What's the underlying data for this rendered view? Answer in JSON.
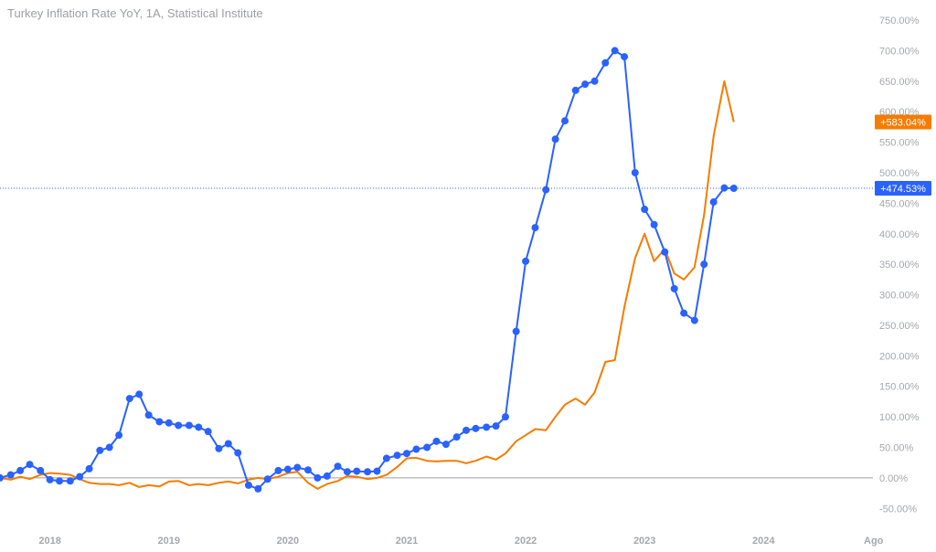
{
  "chart_data": {
    "type": "line",
    "title": "Turkey Inflation Rate YoY, 1A, Statistical Institute",
    "ylim": [
      -75,
      765
    ],
    "y_ticks": [
      -50,
      0,
      50,
      100,
      150,
      200,
      250,
      300,
      350,
      400,
      450,
      500,
      550,
      600,
      650,
      700,
      750
    ],
    "y_tick_labels": [
      "-50.00%",
      "0.00%",
      "50.00%",
      "100.00%",
      "150.00%",
      "200.00%",
      "250.00%",
      "300.00%",
      "350.00%",
      "400.00%",
      "450.00%",
      "500.00%",
      "550.00%",
      "600.00%",
      "650.00%",
      "700.00%",
      "750.00%"
    ],
    "x_ticks": [
      2018,
      2019,
      2020,
      2021,
      2022,
      2023,
      2024
    ],
    "x_tick_labels": [
      "2018",
      "2019",
      "2020",
      "2021",
      "2022",
      "2023",
      "2024"
    ],
    "x_extra_label": "Ago",
    "xlim": [
      2017.58,
      2024.92
    ],
    "zero_line": 0,
    "grid": false,
    "series": [
      {
        "color": "#2962ff",
        "markers": true,
        "last_value_label": "+474.53%",
        "last_value": 474.53,
        "x": [
          2017.58,
          2017.67,
          2017.75,
          2017.83,
          2017.92,
          2018.0,
          2018.08,
          2018.17,
          2018.25,
          2018.33,
          2018.42,
          2018.5,
          2018.58,
          2018.67,
          2018.75,
          2018.83,
          2018.92,
          2019.0,
          2019.08,
          2019.17,
          2019.25,
          2019.33,
          2019.42,
          2019.5,
          2019.58,
          2019.67,
          2019.75,
          2019.83,
          2019.92,
          2020.0,
          2020.08,
          2020.17,
          2020.25,
          2020.33,
          2020.42,
          2020.5,
          2020.58,
          2020.67,
          2020.75,
          2020.83,
          2020.92,
          2021.0,
          2021.08,
          2021.17,
          2021.25,
          2021.33,
          2021.42,
          2021.5,
          2021.58,
          2021.67,
          2021.75,
          2021.83,
          2021.92,
          2022.0,
          2022.08,
          2022.17,
          2022.25,
          2022.33,
          2022.42,
          2022.5,
          2022.58,
          2022.67,
          2022.75,
          2022.83,
          2022.92,
          2023.0,
          2023.08,
          2023.17,
          2023.25,
          2023.33,
          2023.42,
          2023.5,
          2023.58,
          2023.67,
          2023.75
        ],
        "values": [
          0,
          5,
          12,
          22,
          12,
          -3,
          -5,
          -5,
          2,
          15,
          45,
          50,
          70,
          130,
          137,
          103,
          92,
          90,
          86,
          86,
          83,
          76,
          48,
          56,
          41,
          -12,
          -18,
          -2,
          12,
          14,
          17,
          13,
          0,
          3,
          19,
          10,
          11,
          10,
          11,
          32,
          37,
          40,
          47,
          50,
          60,
          55,
          67,
          78,
          81,
          83,
          85,
          100,
          240,
          355,
          410,
          472,
          555,
          585,
          635,
          645,
          650,
          680,
          700,
          690,
          500,
          440,
          415,
          370,
          310,
          270,
          258,
          350,
          452,
          475,
          474.53
        ]
      },
      {
        "color": "#f57c00",
        "markers": false,
        "last_value_label": "+583.04%",
        "last_value": 583.04,
        "x": [
          2017.58,
          2017.67,
          2017.75,
          2017.83,
          2017.92,
          2018.0,
          2018.08,
          2018.17,
          2018.25,
          2018.33,
          2018.42,
          2018.5,
          2018.58,
          2018.67,
          2018.75,
          2018.83,
          2018.92,
          2019.0,
          2019.08,
          2019.17,
          2019.25,
          2019.33,
          2019.42,
          2019.5,
          2019.58,
          2019.67,
          2019.75,
          2019.83,
          2019.92,
          2020.0,
          2020.08,
          2020.17,
          2020.25,
          2020.33,
          2020.42,
          2020.5,
          2020.58,
          2020.67,
          2020.75,
          2020.83,
          2020.92,
          2021.0,
          2021.08,
          2021.17,
          2021.25,
          2021.33,
          2021.42,
          2021.5,
          2021.58,
          2021.67,
          2021.75,
          2021.83,
          2021.92,
          2022.0,
          2022.08,
          2022.17,
          2022.25,
          2022.33,
          2022.42,
          2022.5,
          2022.58,
          2022.67,
          2022.75,
          2022.83,
          2022.92,
          2023.0,
          2023.08,
          2023.17,
          2023.25,
          2023.33,
          2023.42,
          2023.5,
          2023.58,
          2023.67,
          2023.75
        ],
        "values": [
          0,
          -3,
          2,
          -2,
          5,
          8,
          7,
          5,
          -2,
          -8,
          -10,
          -10,
          -12,
          -8,
          -15,
          -12,
          -14,
          -6,
          -5,
          -12,
          -10,
          -12,
          -8,
          -6,
          -9,
          -3,
          0,
          -2,
          2,
          8,
          10,
          -8,
          -18,
          -10,
          -5,
          3,
          2,
          -2,
          0,
          5,
          18,
          32,
          33,
          28,
          27,
          28,
          28,
          24,
          28,
          35,
          30,
          40,
          60,
          70,
          80,
          78,
          100,
          120,
          130,
          120,
          140,
          190,
          193,
          280,
          360,
          400,
          355,
          375,
          335,
          325,
          345,
          430,
          560,
          650,
          583.04
        ]
      }
    ]
  }
}
